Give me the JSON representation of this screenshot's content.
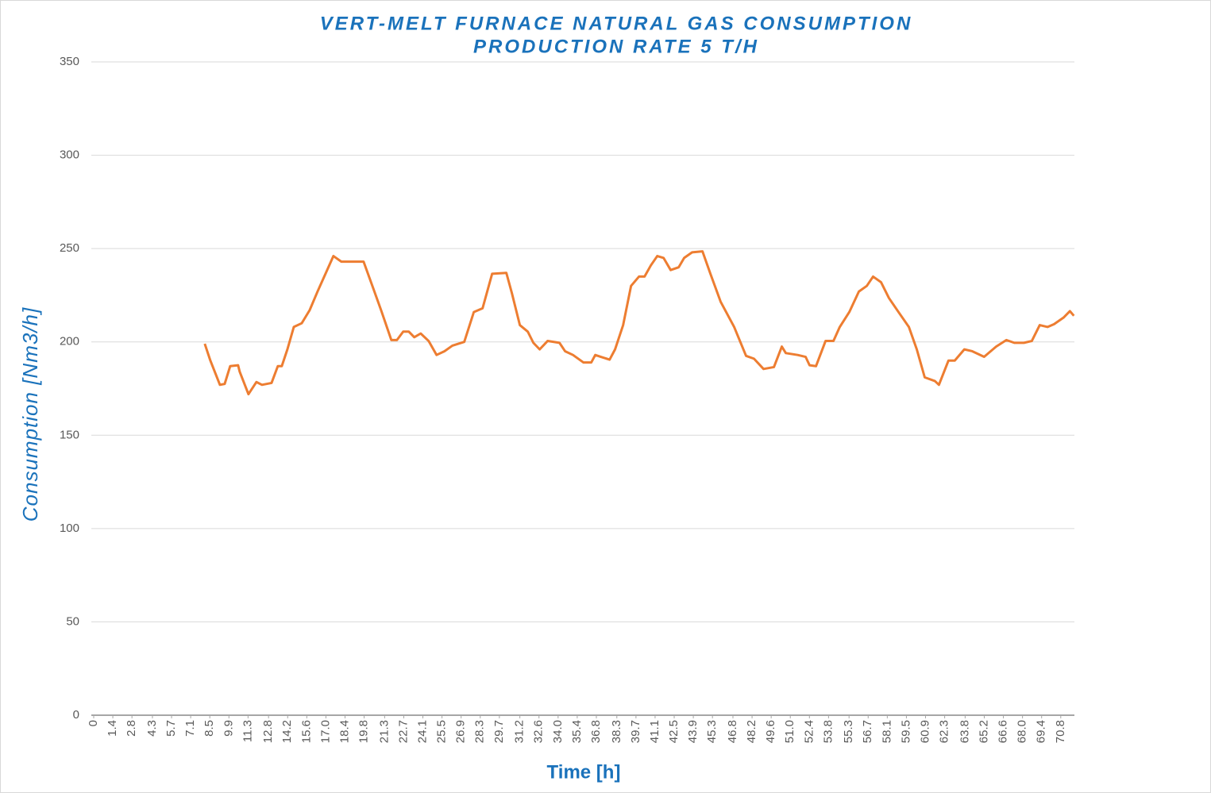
{
  "chart_data": {
    "type": "line",
    "title": "VERT-MELT FURNACE NATURAL GAS CONSUMPTION",
    "subtitle": "PRODUCTION RATE 5 T/H",
    "x_label": "Time [h]",
    "y_label": "Consumption [Nm3/h]",
    "xlim": [
      0,
      71.8
    ],
    "ylim": [
      0,
      350
    ],
    "yticks": [
      0,
      50,
      100,
      150,
      200,
      250,
      300,
      350
    ],
    "xticks": [
      0,
      1.4,
      2.8,
      4.3,
      5.7,
      7.1,
      8.5,
      9.9,
      11.3,
      12.8,
      14.2,
      15.6,
      {
        "value": 17,
        "label": "17.0"
      },
      18.4,
      19.8,
      21.3,
      22.7,
      24.1,
      25.5,
      26.9,
      28.3,
      29.7,
      31.2,
      32.6,
      {
        "value": 34,
        "label": "34.0"
      },
      35.4,
      36.8,
      38.3,
      39.7,
      41.1,
      42.5,
      43.9,
      45.3,
      46.8,
      48.2,
      49.6,
      {
        "value": 51,
        "label": "51.0"
      },
      52.4,
      53.8,
      55.3,
      56.7,
      58.1,
      59.5,
      60.9,
      62.3,
      63.8,
      65.2,
      66.6,
      {
        "value": 68,
        "label": "68.0"
      },
      69.4,
      70.8
    ],
    "grid": true,
    "series": [
      {
        "color": "#ed7d31",
        "x": [
          8.13,
          8.54,
          9.24,
          9.59,
          9.99,
          10.57,
          10.69,
          11.33,
          11.91,
          12.32,
          13.02,
          13.48,
          13.77,
          14.18,
          14.65,
          15.23,
          15.81,
          16.39,
          16.97,
          17.55,
          18.13,
          19.0,
          19.76,
          20.45,
          21.04,
          21.79,
          22.2,
          22.66,
          23.07,
          23.47,
          23.94,
          24.52,
          25.1,
          25.68,
          26.26,
          27.13,
          27.83,
          28.47,
          29.17,
          30.21,
          30.62,
          31.2,
          31.78,
          32.19,
          32.65,
          33.23,
          34.1,
          34.51,
          35.09,
          35.85,
          36.43,
          36.72,
          37.13,
          37.77,
          38.17,
          38.76,
          39.34,
          39.92,
          40.33,
          40.79,
          41.26,
          41.72,
          42.24,
          42.83,
          43.23,
          43.81,
          44.57,
          45.15,
          45.9,
          46.89,
          47.76,
          48.34,
          49.04,
          49.8,
          50.38,
          50.67,
          51.54,
          52.12,
          52.41,
          52.88,
          53.58,
          54.16,
          54.62,
          55.32,
          56.02,
          56.6,
          57.06,
          57.64,
          58.22,
          58.92,
          59.68,
          60.26,
          60.84,
          61.59,
          61.88,
          62.58,
          63.04,
          63.74,
          64.32,
          65.19,
          66.07,
          66.82,
          67.4,
          68.1,
          68.68,
          69.26,
          69.84,
          70.31,
          71.0,
          71.47,
          71.76
        ],
        "values": [
          199,
          190,
          177,
          177.5,
          187,
          187.5,
          184,
          172,
          178.5,
          177,
          178,
          187,
          187,
          196,
          208,
          210,
          217,
          227,
          236.5,
          246,
          243,
          243,
          243,
          229,
          217,
          201,
          201,
          205.5,
          205.5,
          202.5,
          204.5,
          200.5,
          193,
          195,
          198,
          200,
          216,
          218,
          236.5,
          237,
          226,
          209,
          205.5,
          199.5,
          196,
          200.5,
          199.5,
          195,
          193,
          189,
          189,
          193,
          192,
          190.5,
          196,
          209,
          230,
          235,
          235,
          241,
          246,
          245,
          238.5,
          240,
          245,
          248,
          248.5,
          236.5,
          221.5,
          208,
          192.5,
          191,
          185.5,
          186.5,
          197.5,
          194,
          193,
          192,
          187.5,
          187,
          200.5,
          200.5,
          208,
          216,
          227,
          230,
          235,
          232,
          223.5,
          216,
          208,
          196,
          181,
          179,
          177,
          190,
          190,
          196,
          195,
          192,
          197.5,
          201,
          199.5,
          199.5,
          200.5,
          209,
          208,
          209.5,
          213,
          216.5,
          214
        ]
      }
    ]
  }
}
